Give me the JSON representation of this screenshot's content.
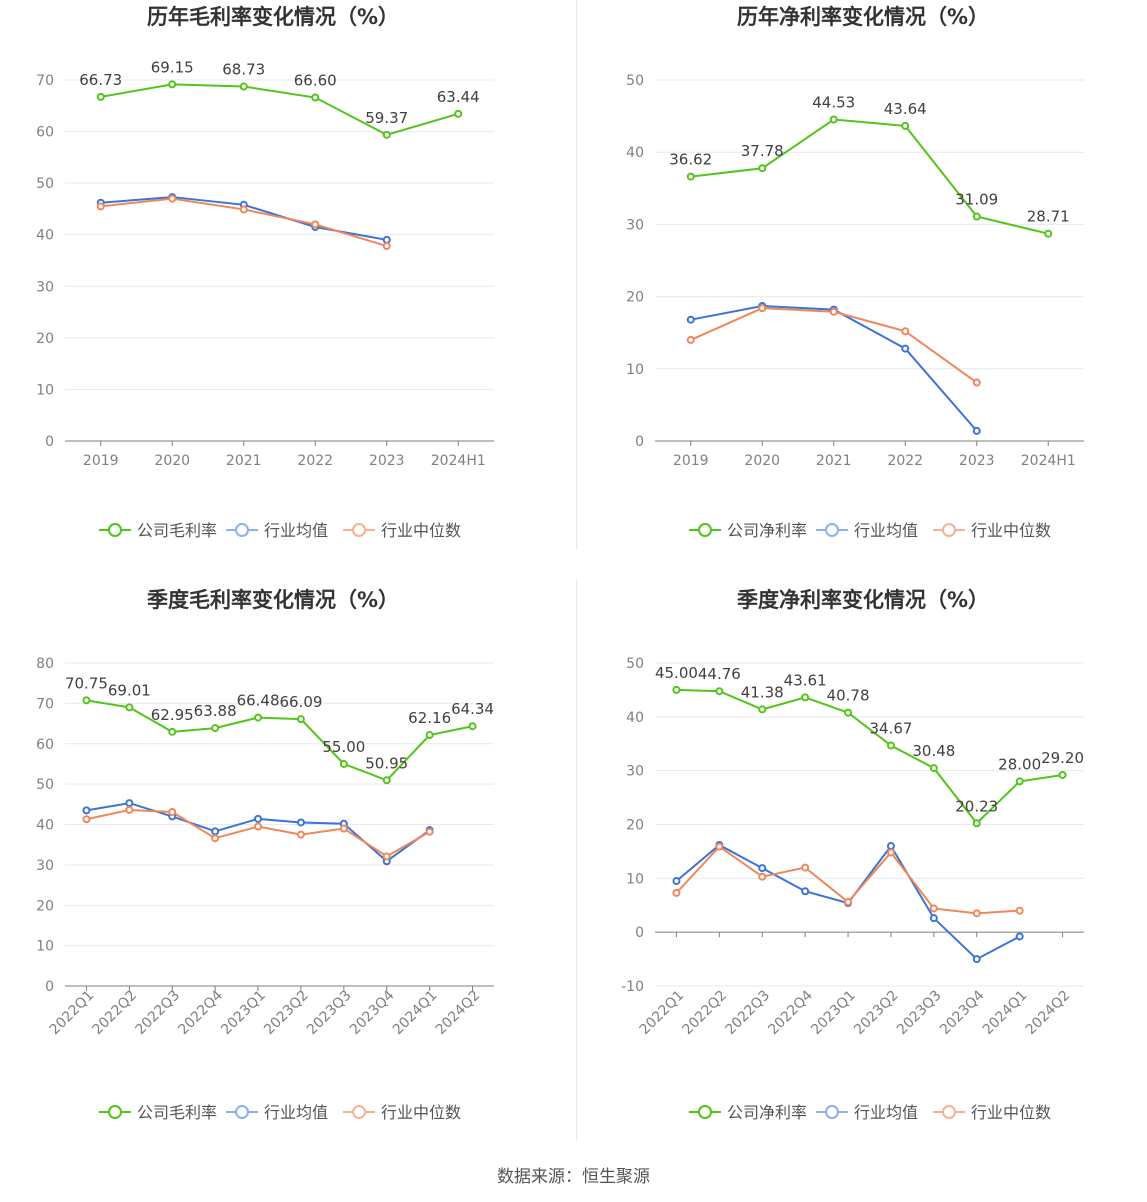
{
  "source_text": "数据来源：恒生聚源",
  "colors": {
    "company": "#52c41a",
    "industry_avg": "#3b73d8",
    "industry_median": "#f0875a",
    "grid": "#e6e9f2",
    "axis": "#7f7f7f",
    "tick_text": "#808080",
    "title": "#333333"
  },
  "chart_data": [
    {
      "type": "line",
      "title": "历年毛利率变化情况（%）",
      "categories": [
        "2019",
        "2020",
        "2021",
        "2022",
        "2023",
        "2024H1"
      ],
      "ylim": [
        0,
        70
      ],
      "yticks": [
        0,
        10,
        20,
        30,
        40,
        50,
        60,
        70
      ],
      "series": [
        {
          "name": "公司毛利率",
          "values": [
            66.73,
            69.15,
            68.73,
            66.6,
            59.37,
            63.44
          ],
          "labels": true
        },
        {
          "name": "行业均值",
          "values": [
            46.2,
            47.3,
            45.8,
            41.5,
            39.0,
            null
          ]
        },
        {
          "name": "行业中位数",
          "values": [
            45.5,
            47.0,
            44.9,
            42.0,
            37.8,
            null
          ]
        }
      ]
    },
    {
      "type": "line",
      "title": "历年净利率变化情况（%）",
      "categories": [
        "2019",
        "2020",
        "2021",
        "2022",
        "2023",
        "2024H1"
      ],
      "ylim": [
        0,
        50
      ],
      "yticks": [
        0,
        10,
        20,
        30,
        40,
        50
      ],
      "series": [
        {
          "name": "公司净利率",
          "values": [
            36.62,
            37.78,
            44.53,
            43.64,
            31.09,
            28.71
          ],
          "labels": true
        },
        {
          "name": "行业均值",
          "values": [
            16.8,
            18.7,
            18.2,
            12.8,
            1.4,
            null
          ]
        },
        {
          "name": "行业中位数",
          "values": [
            14.0,
            18.4,
            17.9,
            15.2,
            8.1,
            null
          ]
        }
      ]
    },
    {
      "type": "line",
      "title": "季度毛利率变化情况（%）",
      "categories": [
        "2022Q1",
        "2022Q2",
        "2022Q3",
        "2022Q4",
        "2023Q1",
        "2023Q2",
        "2023Q3",
        "2023Q4",
        "2024Q1",
        "2024Q2"
      ],
      "ylim": [
        0,
        80
      ],
      "yticks": [
        0,
        10,
        20,
        30,
        40,
        50,
        60,
        70,
        80
      ],
      "series": [
        {
          "name": "公司毛利率",
          "values": [
            70.75,
            69.01,
            62.95,
            63.88,
            66.48,
            66.09,
            55.0,
            50.95,
            62.16,
            64.34
          ],
          "labels": true
        },
        {
          "name": "行业均值",
          "values": [
            43.5,
            45.3,
            42.0,
            38.3,
            41.4,
            40.5,
            40.2,
            30.9,
            38.6,
            null
          ]
        },
        {
          "name": "行业中位数",
          "values": [
            41.3,
            43.6,
            43.1,
            36.6,
            39.5,
            37.5,
            39.0,
            32.1,
            38.2,
            null
          ]
        }
      ]
    },
    {
      "type": "line",
      "title": "季度净利率变化情况（%）",
      "categories": [
        "2022Q1",
        "2022Q2",
        "2022Q3",
        "2022Q4",
        "2023Q1",
        "2023Q2",
        "2023Q3",
        "2023Q4",
        "2024Q1",
        "2024Q2"
      ],
      "ylim": [
        -10,
        50
      ],
      "yticks": [
        -10,
        0,
        10,
        20,
        30,
        40,
        50
      ],
      "series": [
        {
          "name": "公司净利率",
          "values": [
            45.0,
            44.76,
            41.38,
            43.61,
            40.78,
            34.67,
            30.48,
            20.23,
            28.0,
            29.2
          ],
          "labels": true
        },
        {
          "name": "行业均值",
          "values": [
            9.5,
            16.2,
            11.9,
            7.6,
            5.4,
            16.0,
            2.6,
            -5.0,
            -0.8,
            null
          ]
        },
        {
          "name": "行业中位数",
          "values": [
            7.3,
            15.9,
            10.3,
            12.0,
            5.6,
            14.8,
            4.4,
            3.5,
            4.0,
            null
          ]
        }
      ]
    }
  ]
}
